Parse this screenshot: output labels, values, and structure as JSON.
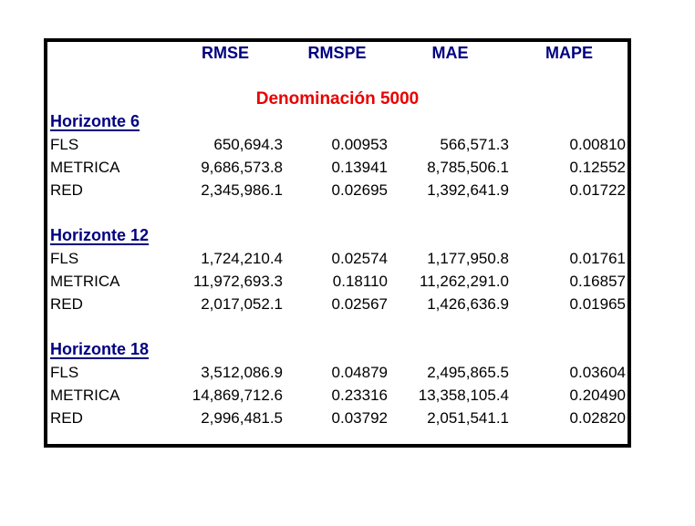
{
  "table": {
    "title": "Denominación 5000",
    "columns": {
      "c1": "RMSE",
      "c2": "RMSPE",
      "c3": "MAE",
      "c4": "MAPE"
    },
    "sections": [
      {
        "heading": "Horizonte 6",
        "rows": [
          {
            "label": "FLS",
            "values": [
              "650,694.3",
              "0.00953",
              "566,571.3",
              "0.00810"
            ]
          },
          {
            "label": "METRICA",
            "values": [
              "9,686,573.8",
              "0.13941",
              "8,785,506.1",
              "0.12552"
            ]
          },
          {
            "label": "RED",
            "values": [
              "2,345,986.1",
              "0.02695",
              "1,392,641.9",
              "0.01722"
            ]
          }
        ]
      },
      {
        "heading": "Horizonte 12",
        "rows": [
          {
            "label": "FLS",
            "values": [
              "1,724,210.4",
              "0.02574",
              "1,177,950.8",
              "0.01761"
            ]
          },
          {
            "label": "METRICA",
            "values": [
              "11,972,693.3",
              "0.18110",
              "11,262,291.0",
              "0.16857"
            ]
          },
          {
            "label": "RED",
            "values": [
              "2,017,052.1",
              "0.02567",
              "1,426,636.9",
              "0.01965"
            ]
          }
        ]
      },
      {
        "heading": "Horizonte 18",
        "rows": [
          {
            "label": "FLS",
            "values": [
              "3,512,086.9",
              "0.04879",
              "2,495,865.5",
              "0.03604"
            ]
          },
          {
            "label": "METRICA",
            "values": [
              "14,869,712.6",
              "0.23316",
              "13,358,105.4",
              "0.20490"
            ]
          },
          {
            "label": "RED",
            "values": [
              "2,996,481.5",
              "0.03792",
              "2,051,541.1",
              "0.02820"
            ]
          }
        ]
      }
    ],
    "colors": {
      "header_text": "#000080",
      "title_text": "#e80000",
      "body_text": "#000000",
      "border": "#000000"
    }
  }
}
